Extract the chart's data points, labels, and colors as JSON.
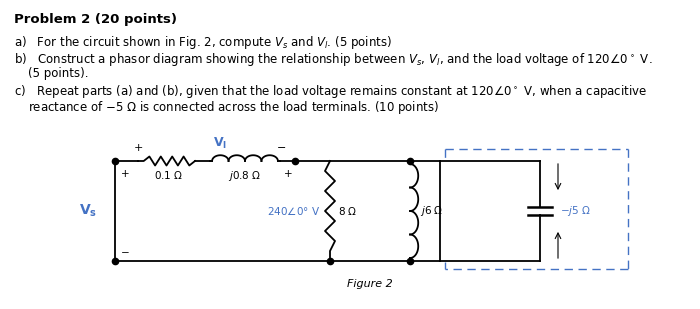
{
  "title": "Problem 2 (20 points)",
  "line_a": "a)   For the circuit shown in Fig. 2, compute ",
  "line_a2": " and ",
  "line_a3": ". (5 points)",
  "line_b": "b)   Construct a phasor diagram showing the relationship between ",
  "line_b2": ", and the load voltage of 120",
  "line_b3": "0° V.",
  "line_b4": "     (5 points).",
  "line_c": "c)   Repeat parts (a) and (b), given that the load voltage remains constant at 120",
  "line_c2": "0° V, when a capacitive",
  "line_c3": "     reactance of −5 Ω is connected across the load terminals. (10 points)",
  "fig_label": "Figure 2",
  "blue": "#4472C4",
  "black": "#000000",
  "white": "#FFFFFF",
  "bg": "#FFFFFF"
}
